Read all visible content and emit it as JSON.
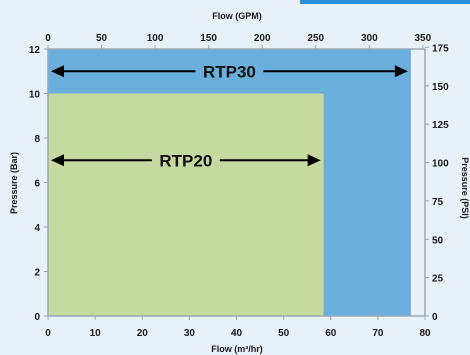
{
  "chart_data": {
    "type": "area",
    "xlabel": "Flow (m³/hr)",
    "ylabel": "Pressure (Bar)",
    "x2label": "Flow (GPM)",
    "y2label": "Pressure (PSI)",
    "xlim": [
      0,
      80
    ],
    "ylim": [
      0,
      12
    ],
    "x2lim": [
      0,
      352
    ],
    "y2lim": [
      0,
      174
    ],
    "x_ticks": [
      "0",
      "10",
      "20",
      "30",
      "40",
      "50",
      "60",
      "70",
      "80"
    ],
    "y_ticks": [
      "0",
      "2",
      "4",
      "6",
      "8",
      "10",
      "12"
    ],
    "x2_ticks": [
      "0",
      "50",
      "100",
      "150",
      "200",
      "250",
      "300",
      "350"
    ],
    "y2_ticks": [
      "0",
      "25",
      "50",
      "75",
      "100",
      "125",
      "150",
      "175"
    ],
    "series": [
      {
        "name": "RTP30",
        "max_flow": 77,
        "max_pressure": 12,
        "label_pressure": 11.0,
        "color": "#6aaedb"
      },
      {
        "name": "RTP20",
        "max_flow": 58.5,
        "max_pressure": 10,
        "label_pressure": 7.0,
        "color": "#c6d9a0"
      }
    ],
    "colors": {
      "background": "#e8f0f8",
      "accent": "#2a8fd8",
      "axis": "#9aa7b3",
      "text": "#1a1a1a",
      "arrow": "#000000"
    }
  }
}
